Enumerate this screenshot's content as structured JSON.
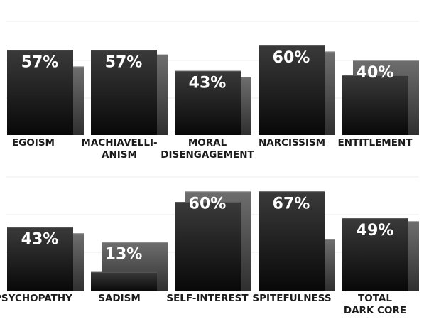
{
  "chart_data": {
    "type": "bar",
    "legend": "none",
    "grid": true,
    "ylim": [
      0,
      100
    ],
    "colors": {
      "primary_top": "#3a3a3a",
      "primary_bottom": "#080808",
      "secondary_top": "#6e6e6e",
      "secondary_bottom": "#2f2f2f",
      "grid": "#ececec",
      "text": "#1c1c1c"
    },
    "rows": [
      {
        "categories": [
          {
            "lines": [
              "EGOISM"
            ],
            "value": 57,
            "label": "57%",
            "comparison": 46
          },
          {
            "lines": [
              "MACHIAVELLI-",
              "ANISM"
            ],
            "value": 57,
            "label": "57%",
            "comparison": 54
          },
          {
            "lines": [
              "MORAL",
              "DISENGAGEMENT"
            ],
            "value": 43,
            "label": "43%",
            "comparison": 39
          },
          {
            "lines": [
              "NARCISSISM"
            ],
            "value": 60,
            "label": "60%",
            "comparison": 56
          },
          {
            "lines": [
              "ENTITLEMENT"
            ],
            "value": 40,
            "label": "40%",
            "comparison": 50
          }
        ]
      },
      {
        "categories": [
          {
            "lines": [
              "PSYCHOPATHY"
            ],
            "value": 43,
            "label": "43%",
            "comparison": 39
          },
          {
            "lines": [
              "SADISM"
            ],
            "value": 13,
            "label": "13%",
            "comparison": 33
          },
          {
            "lines": [
              "SELF-INTEREST"
            ],
            "value": 60,
            "label": "60%",
            "comparison": 67
          },
          {
            "lines": [
              "SPITEFULNESS"
            ],
            "value": 67,
            "label": "67%",
            "comparison": 35
          },
          {
            "lines": [
              "TOTAL",
              "DARK CORE"
            ],
            "value": 49,
            "label": "49%",
            "comparison": 47
          }
        ]
      }
    ]
  }
}
